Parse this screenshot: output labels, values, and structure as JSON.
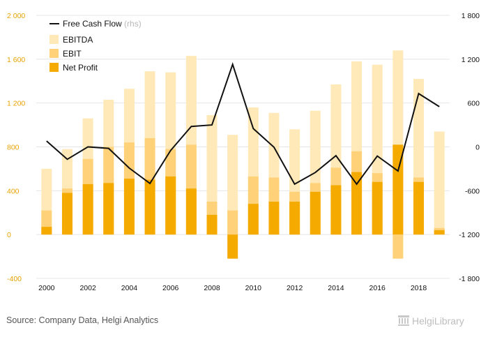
{
  "chart_data": {
    "type": "bar",
    "title": "",
    "categories": [
      "2000",
      "2001",
      "2002",
      "2003",
      "2004",
      "2005",
      "2006",
      "2007",
      "2008",
      "2009",
      "2010",
      "2011",
      "2012",
      "2013",
      "2014",
      "2015",
      "2016",
      "2017",
      "2018",
      "2019"
    ],
    "series": [
      {
        "name": "EBITDA",
        "axis": "left",
        "color": "#ffe9b8",
        "values": [
          600,
          780,
          1060,
          1230,
          1330,
          1490,
          1480,
          1630,
          1090,
          910,
          1160,
          1110,
          960,
          1130,
          1370,
          1580,
          1550,
          1680,
          1420,
          940
        ]
      },
      {
        "name": "EBIT",
        "axis": "left",
        "color": "#ffd27a",
        "values": [
          220,
          420,
          690,
          800,
          840,
          880,
          780,
          820,
          300,
          220,
          530,
          520,
          390,
          470,
          610,
          760,
          560,
          -220,
          520,
          60
        ]
      },
      {
        "name": "Net Profit",
        "axis": "left",
        "color": "#f5aa00",
        "values": [
          70,
          380,
          460,
          470,
          510,
          500,
          530,
          420,
          180,
          -220,
          280,
          300,
          300,
          390,
          450,
          570,
          480,
          820,
          480,
          40
        ]
      },
      {
        "name": "Free Cash Flow",
        "axis": "right",
        "type": "line",
        "color": "#111111",
        "values": [
          80,
          -170,
          0,
          -20,
          -290,
          -500,
          -50,
          280,
          300,
          1130,
          250,
          -5,
          -510,
          -350,
          -120,
          -510,
          -125,
          -330,
          730,
          550
        ]
      }
    ],
    "legend": {
      "position": "top-left",
      "items": [
        {
          "label": "Free Cash Flow",
          "note": "(rhs)",
          "swatch": "line"
        },
        {
          "label": "EBITDA",
          "swatch": "box"
        },
        {
          "label": "EBIT",
          "swatch": "box"
        },
        {
          "label": "Net Profit",
          "swatch": "box"
        }
      ]
    },
    "y_left": {
      "range": [
        -400,
        2000
      ],
      "ticks": [
        -400,
        0,
        400,
        800,
        "1 200",
        "1 600",
        "2 000"
      ],
      "tick_values": [
        -400,
        0,
        400,
        800,
        1200,
        1600,
        2000
      ]
    },
    "y_right": {
      "range": [
        -1800,
        1800
      ],
      "ticks": [
        "-1 800",
        "-1 200",
        "-600",
        "0",
        "600",
        "1 200",
        "1 800"
      ],
      "tick_values": [
        -1800,
        -1200,
        -600,
        0,
        600,
        1200,
        1800
      ]
    },
    "x_ticks": [
      "2000",
      "2002",
      "2004",
      "2006",
      "2008",
      "2010",
      "2012",
      "2014",
      "2016",
      "2018"
    ],
    "grid": true
  },
  "footer": {
    "source": "Source: Company Data, Helgi Analytics",
    "brand": "HelgiLibrary"
  }
}
